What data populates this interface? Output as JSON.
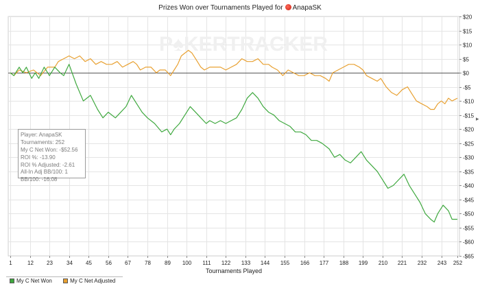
{
  "title": {
    "prefix": "Prizes Won over Tournaments Played for",
    "player": "AnapaSK"
  },
  "watermark": {
    "text_a": "P",
    "text_b": "KERTRACKER"
  },
  "info": {
    "player": "Player: AnapaSK",
    "tournaments": "Tournaments: 252",
    "net_won": "My C Net Won: -$52.56",
    "roi": "ROI %: -13.90",
    "roi_adj": "ROI % Adjusted: -2.61",
    "allin": "All-In Adj BB/100: 1",
    "bb100": "BB/100: -16.08"
  },
  "legend": {
    "net_won": "My C Net Won",
    "net_adjusted": "My C Net Adjusted"
  },
  "colors": {
    "net_won": "#3ea83e",
    "net_adjusted": "#e8a030",
    "zero": "#555555",
    "grid": "#e4e4e4"
  },
  "chart_data": {
    "type": "line",
    "title": "Prizes Won over Tournaments Played for AnapaSK",
    "xlabel": "Tournaments Played",
    "ylabel": "",
    "xlim": [
      1,
      252
    ],
    "ylim": [
      -65,
      20
    ],
    "x_ticks": [
      "1",
      "12",
      "23",
      "34",
      "45",
      "56",
      "67",
      "78",
      "89",
      "100",
      "111",
      "122",
      "133",
      "144",
      "155",
      "166",
      "177",
      "188",
      "199",
      "210",
      "221",
      "232",
      "243",
      "252"
    ],
    "y_ticks": [
      20,
      15,
      10,
      5,
      0,
      -5,
      -10,
      -15,
      -20,
      -25,
      -30,
      -35,
      -40,
      -45,
      -50,
      -55,
      -60,
      -65
    ],
    "y_tick_labels": [
      "$20",
      "$15",
      "$10",
      "$5",
      "$0",
      "-$5",
      "-$10",
      "-$15",
      "-$20",
      "-$25",
      "-$30",
      "-$35",
      "-$40",
      "-$45",
      "-$50",
      "-$55",
      "-$60",
      "-$65"
    ],
    "series": [
      {
        "name": "My C Net Won",
        "points": [
          [
            1,
            0
          ],
          [
            3,
            -1
          ],
          [
            6,
            2
          ],
          [
            8,
            0
          ],
          [
            10,
            2
          ],
          [
            13,
            -2
          ],
          [
            15,
            0
          ],
          [
            17,
            -2
          ],
          [
            20,
            2
          ],
          [
            23,
            -1
          ],
          [
            26,
            2
          ],
          [
            29,
            0
          ],
          [
            31,
            -1
          ],
          [
            34,
            3
          ],
          [
            38,
            -4
          ],
          [
            42,
            -10
          ],
          [
            46,
            -8
          ],
          [
            50,
            -13
          ],
          [
            53,
            -16
          ],
          [
            56,
            -14
          ],
          [
            60,
            -16
          ],
          [
            63,
            -14
          ],
          [
            66,
            -12
          ],
          [
            69,
            -8
          ],
          [
            72,
            -11
          ],
          [
            75,
            -14
          ],
          [
            78,
            -16
          ],
          [
            82,
            -18
          ],
          [
            86,
            -21
          ],
          [
            89,
            -20
          ],
          [
            91,
            -22
          ],
          [
            93,
            -20
          ],
          [
            96,
            -18
          ],
          [
            99,
            -15
          ],
          [
            102,
            -12
          ],
          [
            105,
            -14
          ],
          [
            108,
            -16
          ],
          [
            111,
            -18
          ],
          [
            113,
            -17
          ],
          [
            116,
            -18
          ],
          [
            119,
            -17
          ],
          [
            122,
            -18
          ],
          [
            125,
            -17
          ],
          [
            128,
            -16
          ],
          [
            131,
            -13
          ],
          [
            134,
            -9
          ],
          [
            137,
            -7
          ],
          [
            140,
            -9
          ],
          [
            143,
            -12
          ],
          [
            146,
            -14
          ],
          [
            149,
            -15
          ],
          [
            152,
            -17
          ],
          [
            155,
            -18
          ],
          [
            158,
            -19
          ],
          [
            161,
            -21
          ],
          [
            164,
            -21
          ],
          [
            167,
            -22
          ],
          [
            170,
            -24
          ],
          [
            173,
            -24
          ],
          [
            176,
            -25
          ],
          [
            180,
            -27
          ],
          [
            183,
            -30
          ],
          [
            186,
            -29
          ],
          [
            189,
            -31
          ],
          [
            192,
            -32
          ],
          [
            195,
            -30
          ],
          [
            198,
            -28
          ],
          [
            201,
            -31
          ],
          [
            204,
            -33
          ],
          [
            207,
            -35
          ],
          [
            210,
            -38
          ],
          [
            213,
            -41
          ],
          [
            216,
            -40
          ],
          [
            219,
            -38
          ],
          [
            222,
            -36
          ],
          [
            225,
            -40
          ],
          [
            228,
            -43
          ],
          [
            231,
            -46
          ],
          [
            234,
            -50
          ],
          [
            237,
            -52
          ],
          [
            239,
            -53
          ],
          [
            241,
            -50
          ],
          [
            244,
            -47
          ],
          [
            247,
            -49
          ],
          [
            249,
            -52
          ],
          [
            252,
            -52
          ]
        ]
      },
      {
        "name": "My C Net Adjusted",
        "points": [
          [
            1,
            0
          ],
          [
            3,
            -1
          ],
          [
            6,
            1
          ],
          [
            10,
            0
          ],
          [
            14,
            1
          ],
          [
            18,
            -1
          ],
          [
            22,
            2
          ],
          [
            26,
            2
          ],
          [
            28,
            4
          ],
          [
            31,
            5
          ],
          [
            34,
            6
          ],
          [
            37,
            5
          ],
          [
            40,
            6
          ],
          [
            43,
            4
          ],
          [
            46,
            5
          ],
          [
            49,
            3
          ],
          [
            52,
            4
          ],
          [
            55,
            3
          ],
          [
            58,
            3
          ],
          [
            61,
            4
          ],
          [
            64,
            2
          ],
          [
            67,
            3
          ],
          [
            70,
            4
          ],
          [
            72,
            3
          ],
          [
            74,
            1
          ],
          [
            77,
            2
          ],
          [
            80,
            2
          ],
          [
            83,
            0
          ],
          [
            85,
            1
          ],
          [
            88,
            1
          ],
          [
            91,
            -1
          ],
          [
            93,
            1
          ],
          [
            95,
            3
          ],
          [
            97,
            6
          ],
          [
            99,
            7
          ],
          [
            101,
            8
          ],
          [
            103,
            7
          ],
          [
            105,
            5
          ],
          [
            108,
            2
          ],
          [
            110,
            1
          ],
          [
            113,
            2
          ],
          [
            116,
            2
          ],
          [
            119,
            2
          ],
          [
            122,
            1
          ],
          [
            125,
            2
          ],
          [
            128,
            3
          ],
          [
            131,
            5
          ],
          [
            134,
            4
          ],
          [
            137,
            4
          ],
          [
            140,
            5
          ],
          [
            143,
            3
          ],
          [
            146,
            3
          ],
          [
            148,
            2
          ],
          [
            151,
            1
          ],
          [
            154,
            -1
          ],
          [
            157,
            1
          ],
          [
            160,
            0
          ],
          [
            163,
            -1
          ],
          [
            166,
            -1
          ],
          [
            169,
            0
          ],
          [
            172,
            -1
          ],
          [
            175,
            -1
          ],
          [
            178,
            -2
          ],
          [
            180,
            -3
          ],
          [
            182,
            0
          ],
          [
            185,
            1
          ],
          [
            188,
            2
          ],
          [
            191,
            3
          ],
          [
            194,
            3
          ],
          [
            197,
            2
          ],
          [
            199,
            1
          ],
          [
            201,
            -1
          ],
          [
            204,
            -2
          ],
          [
            207,
            -3
          ],
          [
            209,
            -2
          ],
          [
            212,
            -5
          ],
          [
            215,
            -7
          ],
          [
            218,
            -8
          ],
          [
            221,
            -6
          ],
          [
            224,
            -5
          ],
          [
            226,
            -7
          ],
          [
            229,
            -10
          ],
          [
            232,
            -11
          ],
          [
            235,
            -12
          ],
          [
            237,
            -13
          ],
          [
            239,
            -13
          ],
          [
            241,
            -11
          ],
          [
            243,
            -10
          ],
          [
            245,
            -11
          ],
          [
            247,
            -9
          ],
          [
            249,
            -10
          ],
          [
            252,
            -9
          ]
        ]
      }
    ]
  }
}
